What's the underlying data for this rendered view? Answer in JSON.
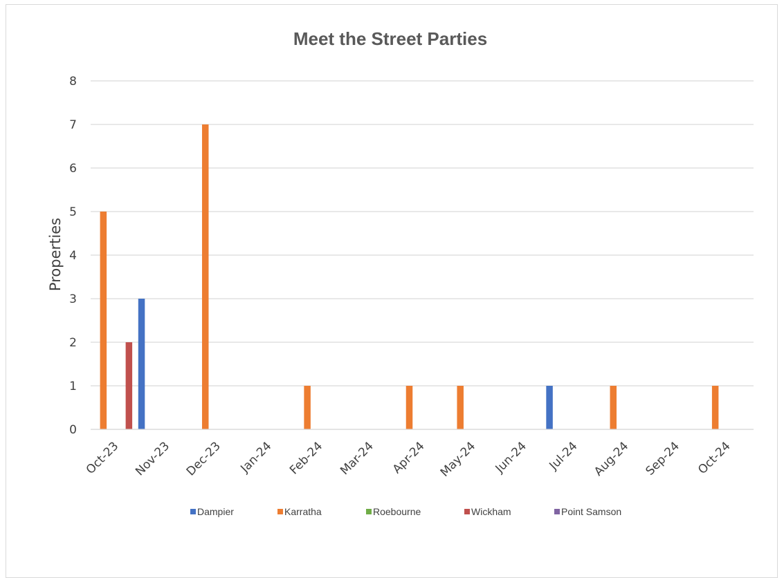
{
  "chart_data": {
    "type": "bar",
    "title": "Meet the Street Parties",
    "xlabel": "",
    "ylabel": "Properties",
    "ylim": [
      0,
      8
    ],
    "yticks": [
      "0",
      "1",
      "2",
      "3",
      "4",
      "5",
      "6",
      "7",
      "8"
    ],
    "grid": true,
    "legend_position": "bottom",
    "categories": [
      "Oct-23",
      "Nov-23",
      "Dec-23",
      "Jan-24",
      "Feb-24",
      "Mar-24",
      "Apr-24",
      "May-24",
      "Jun-24",
      "Jul-24",
      "Aug-24",
      "Sep-24",
      "Oct-24"
    ],
    "series": [
      {
        "name": "Dampier",
        "color": "#4472c4",
        "values": [
          0,
          3,
          0,
          0,
          0,
          0,
          0,
          0,
          0,
          1,
          0,
          0,
          0
        ]
      },
      {
        "name": "Karratha",
        "color": "#ed7d31",
        "values": [
          5,
          0,
          7,
          0,
          1,
          0,
          1,
          1,
          0,
          0,
          1,
          0,
          1
        ]
      },
      {
        "name": "Roebourne",
        "color": "#70ad47",
        "values": [
          0,
          0,
          0,
          0,
          0,
          0,
          0,
          0,
          0,
          0,
          0,
          0,
          0
        ]
      },
      {
        "name": "Wickham",
        "color": "#c0504d",
        "values": [
          2,
          0,
          0,
          0,
          0,
          0,
          0,
          0,
          0,
          0,
          0,
          0,
          0
        ]
      },
      {
        "name": "Point Samson",
        "color": "#8064a2",
        "values": [
          0,
          0,
          0,
          0,
          0,
          0,
          0,
          0,
          0,
          0,
          0,
          0,
          0
        ]
      }
    ]
  }
}
